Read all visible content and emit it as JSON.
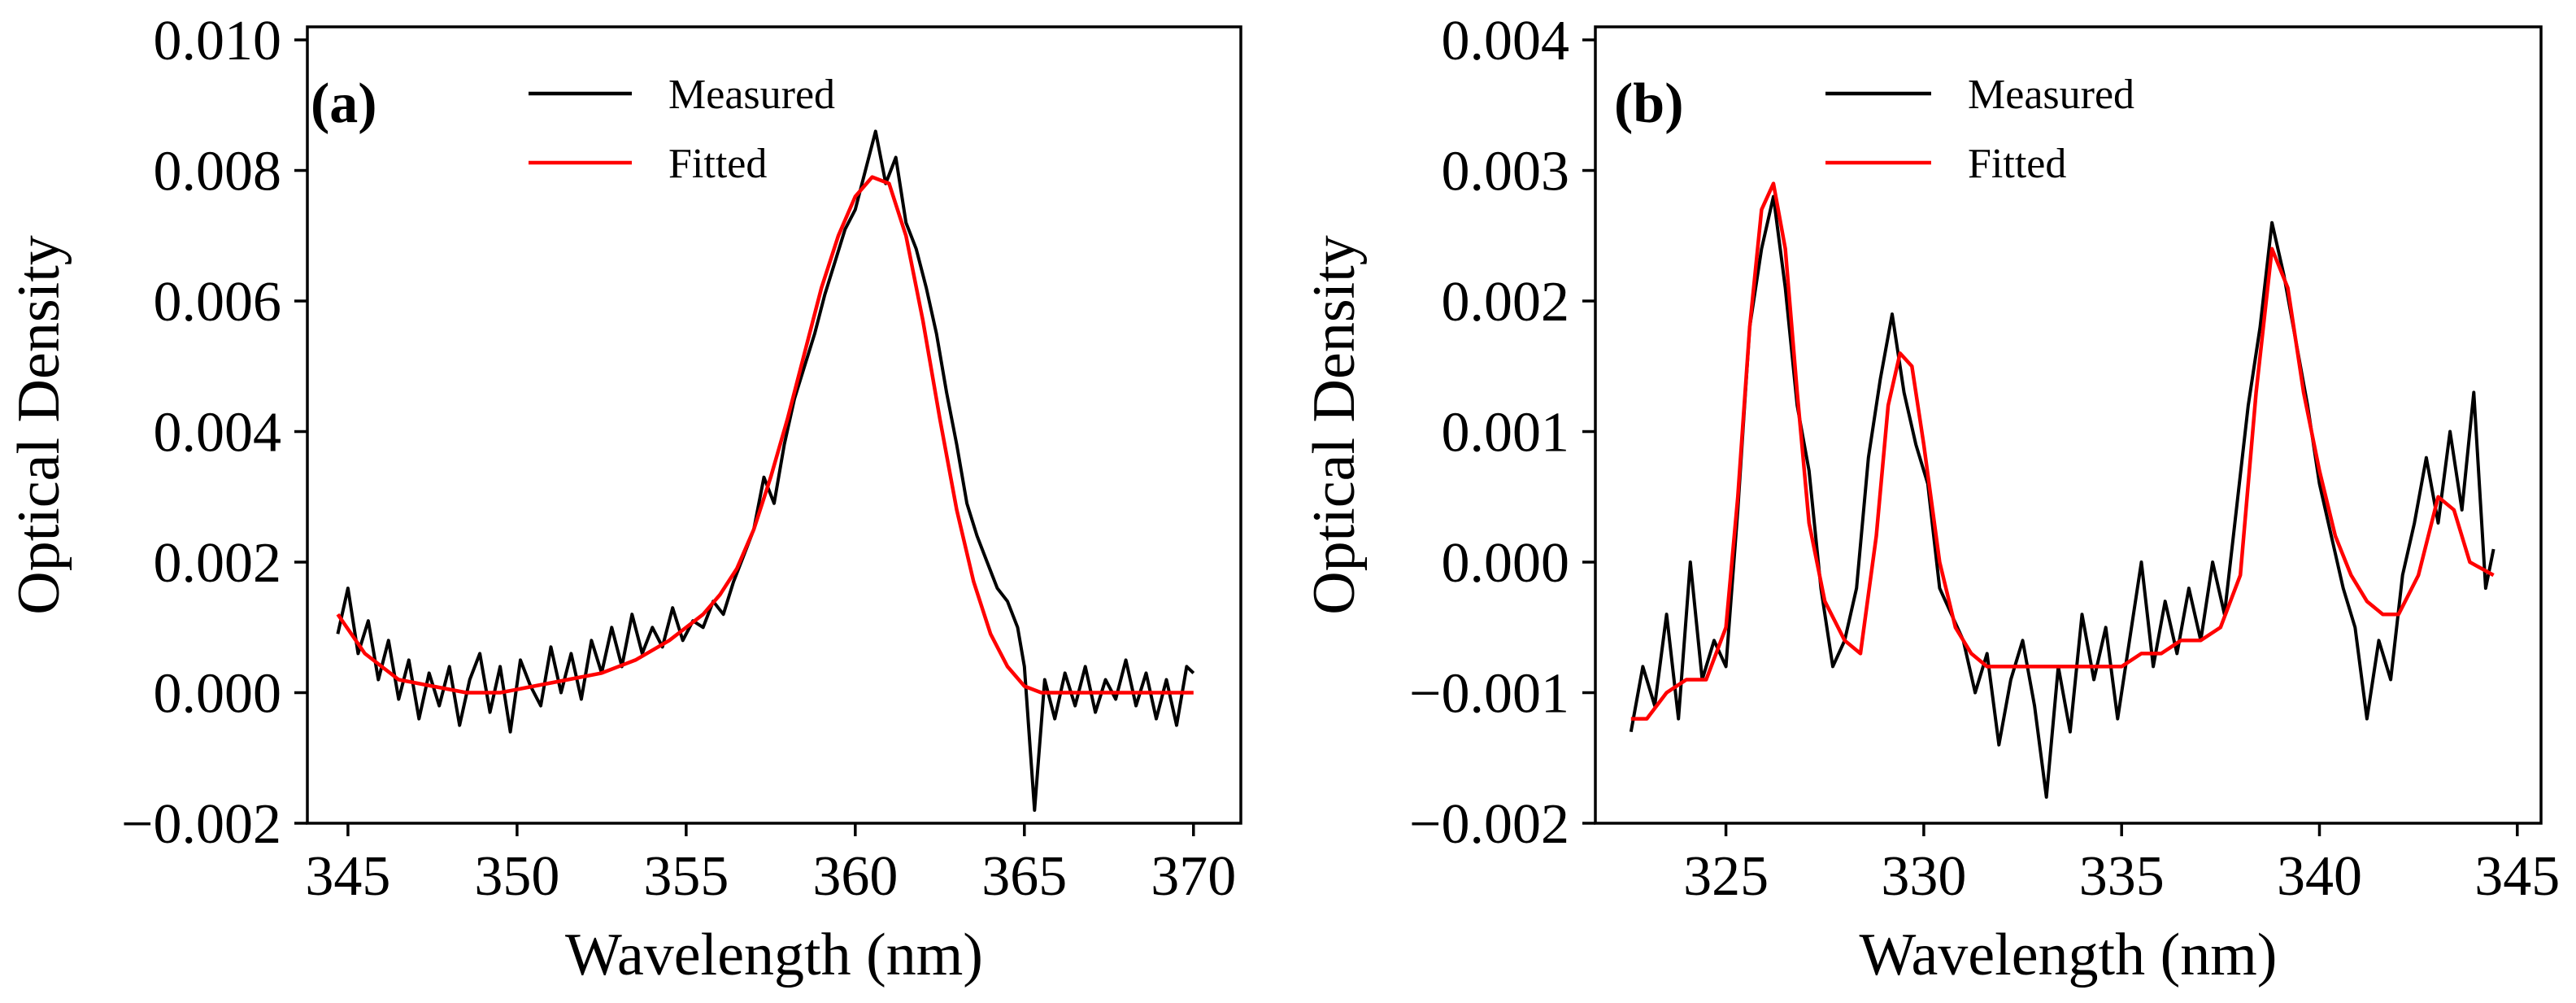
{
  "chart_data": [
    {
      "type": "line",
      "panel_label": "(a)",
      "xlabel": "Wavelength (nm)",
      "ylabel": "Optical Density",
      "xlim": [
        343.8,
        371.4
      ],
      "ylim": [
        -0.002,
        0.0102
      ],
      "xticks": [
        345,
        350,
        355,
        360,
        365,
        370
      ],
      "xtick_labels": [
        "345",
        "350",
        "355",
        "360",
        "365",
        "370"
      ],
      "yticks": [
        -0.002,
        0.0,
        0.002,
        0.004,
        0.006,
        0.008,
        0.01
      ],
      "ytick_labels": [
        "−0.002",
        "0.000",
        "0.002",
        "0.004",
        "0.006",
        "0.008",
        "0.010"
      ],
      "legend": {
        "position": "top-center",
        "entries": [
          "Measured",
          "Fitted"
        ]
      },
      "series": [
        {
          "name": "Measured",
          "color": "#000000",
          "x": [
            344.7,
            345.0,
            345.3,
            345.6,
            345.9,
            346.2,
            346.5,
            346.8,
            347.1,
            347.4,
            347.7,
            348.0,
            348.3,
            348.6,
            348.9,
            349.2,
            349.5,
            349.8,
            350.1,
            350.4,
            350.7,
            351.0,
            351.3,
            351.6,
            351.9,
            352.2,
            352.5,
            352.8,
            353.1,
            353.4,
            353.7,
            354.0,
            354.3,
            354.6,
            354.9,
            355.2,
            355.5,
            355.8,
            356.1,
            356.4,
            356.7,
            357.0,
            357.3,
            357.6,
            357.9,
            358.2,
            358.5,
            358.8,
            359.1,
            359.4,
            359.7,
            360.0,
            360.3,
            360.6,
            360.9,
            361.2,
            361.5,
            361.8,
            362.1,
            362.4,
            362.7,
            363.0,
            363.3,
            363.6,
            363.9,
            364.2,
            364.5,
            364.8,
            365.0,
            365.3,
            365.6,
            365.9,
            366.2,
            366.5,
            366.8,
            367.1,
            367.4,
            367.7,
            368.0,
            368.3,
            368.6,
            368.9,
            369.2,
            369.5,
            369.8,
            370.0
          ],
          "y": [
            0.0009,
            0.0016,
            0.0006,
            0.0011,
            0.0002,
            0.0008,
            -0.0001,
            0.0005,
            -0.0004,
            0.0003,
            -0.0002,
            0.0004,
            -0.0005,
            0.0002,
            0.0006,
            -0.0003,
            0.0004,
            -0.0006,
            0.0005,
            0.0001,
            -0.0002,
            0.0007,
            0.0,
            0.0006,
            -0.0001,
            0.0008,
            0.0003,
            0.001,
            0.0004,
            0.0012,
            0.0006,
            0.001,
            0.0007,
            0.0013,
            0.0008,
            0.0011,
            0.001,
            0.0014,
            0.0012,
            0.0017,
            0.0021,
            0.0025,
            0.0033,
            0.0029,
            0.0038,
            0.0045,
            0.005,
            0.0055,
            0.0061,
            0.0066,
            0.0071,
            0.0074,
            0.008,
            0.0086,
            0.0078,
            0.0082,
            0.0072,
            0.0068,
            0.0062,
            0.0055,
            0.0046,
            0.0038,
            0.0029,
            0.0024,
            0.002,
            0.0016,
            0.0014,
            0.001,
            0.0004,
            -0.0018,
            0.0002,
            -0.0004,
            0.0003,
            -0.0002,
            0.0004,
            -0.0003,
            0.0002,
            -0.0001,
            0.0005,
            -0.0002,
            0.0003,
            -0.0004,
            0.0002,
            -0.0005,
            0.0004,
            0.0003
          ]
        },
        {
          "name": "Fitted",
          "color": "#ff0000",
          "x": [
            344.7,
            345.5,
            346.5,
            347.5,
            348.5,
            349.5,
            350.5,
            351.5,
            352.5,
            353.5,
            354.5,
            355.5,
            356.0,
            356.5,
            357.0,
            357.5,
            358.0,
            358.5,
            359.0,
            359.5,
            360.0,
            360.5,
            361.0,
            361.5,
            362.0,
            362.5,
            363.0,
            363.5,
            364.0,
            364.5,
            365.0,
            365.5,
            366.0,
            367.0,
            368.0,
            369.0,
            370.0
          ],
          "y": [
            0.0012,
            0.0006,
            0.0002,
            0.0001,
            0.0,
            0.0,
            0.0001,
            0.0002,
            0.0003,
            0.0005,
            0.0008,
            0.0012,
            0.0015,
            0.0019,
            0.0025,
            0.0033,
            0.0042,
            0.0052,
            0.0062,
            0.007,
            0.0076,
            0.0079,
            0.0078,
            0.007,
            0.0057,
            0.0042,
            0.0028,
            0.0017,
            0.0009,
            0.0004,
            0.0001,
            0.0,
            0.0,
            0.0,
            0.0,
            0.0,
            0.0
          ]
        }
      ]
    },
    {
      "type": "line",
      "panel_label": "(b)",
      "xlabel": "Wavelength (nm)",
      "ylabel": "Optical Density",
      "xlim": [
        321.7,
        345.6
      ],
      "ylim": [
        -0.002,
        0.0041
      ],
      "xticks": [
        325,
        330,
        335,
        340,
        345
      ],
      "xtick_labels": [
        "325",
        "330",
        "335",
        "340",
        "345"
      ],
      "yticks": [
        -0.002,
        -0.001,
        0.0,
        0.001,
        0.002,
        0.003,
        0.004
      ],
      "ytick_labels": [
        "−0.002",
        "−0.001",
        "0.000",
        "0.001",
        "0.002",
        "0.003",
        "0.004"
      ],
      "legend": {
        "position": "top-center",
        "entries": [
          "Measured",
          "Fitted"
        ]
      },
      "series": [
        {
          "name": "Measured",
          "color": "#000000",
          "x": [
            322.6,
            322.9,
            323.2,
            323.5,
            323.8,
            324.1,
            324.4,
            324.7,
            325.0,
            325.3,
            325.6,
            325.9,
            326.2,
            326.5,
            326.8,
            327.1,
            327.4,
            327.7,
            328.0,
            328.3,
            328.6,
            328.9,
            329.2,
            329.5,
            329.8,
            330.1,
            330.4,
            330.7,
            331.0,
            331.3,
            331.6,
            331.9,
            332.2,
            332.5,
            332.8,
            333.1,
            333.4,
            333.7,
            334.0,
            334.3,
            334.6,
            334.9,
            335.2,
            335.5,
            335.8,
            336.1,
            336.4,
            336.7,
            337.0,
            337.3,
            337.6,
            337.9,
            338.2,
            338.5,
            338.8,
            339.1,
            339.4,
            339.7,
            340.0,
            340.3,
            340.6,
            340.9,
            341.2,
            341.5,
            341.8,
            342.1,
            342.4,
            342.7,
            343.0,
            343.3,
            343.6,
            343.9,
            344.2,
            344.4
          ],
          "y": [
            -0.0013,
            -0.0008,
            -0.0011,
            -0.0004,
            -0.0012,
            0.0,
            -0.0009,
            -0.0006,
            -0.0008,
            0.0004,
            0.0018,
            0.0024,
            0.0028,
            0.0021,
            0.0012,
            0.0007,
            -0.0002,
            -0.0008,
            -0.0006,
            -0.0002,
            0.0008,
            0.0014,
            0.0019,
            0.0013,
            0.0009,
            0.0006,
            -0.0002,
            -0.0004,
            -0.0006,
            -0.001,
            -0.0007,
            -0.0014,
            -0.0009,
            -0.0006,
            -0.0011,
            -0.0018,
            -0.0008,
            -0.0013,
            -0.0004,
            -0.0009,
            -0.0005,
            -0.0012,
            -0.0006,
            0.0,
            -0.0008,
            -0.0003,
            -0.0007,
            -0.0002,
            -0.0006,
            0.0,
            -0.0004,
            0.0004,
            0.0012,
            0.0018,
            0.0026,
            0.0022,
            0.0017,
            0.0012,
            0.0006,
            0.0002,
            -0.0002,
            -0.0005,
            -0.0012,
            -0.0006,
            -0.0009,
            -0.0001,
            0.0003,
            0.0008,
            0.0003,
            0.001,
            0.0004,
            0.0013,
            -0.0002,
            0.0001
          ]
        },
        {
          "name": "Fitted",
          "color": "#ff0000",
          "x": [
            322.6,
            323.0,
            323.5,
            324.0,
            324.5,
            325.0,
            325.3,
            325.6,
            325.9,
            326.2,
            326.5,
            326.8,
            327.1,
            327.5,
            328.0,
            328.4,
            328.8,
            329.1,
            329.4,
            329.7,
            330.0,
            330.4,
            330.8,
            331.2,
            331.6,
            332.0,
            332.5,
            333.0,
            333.5,
            334.0,
            334.5,
            335.0,
            335.5,
            336.0,
            336.5,
            337.0,
            337.5,
            338.0,
            338.4,
            338.8,
            339.2,
            339.6,
            340.0,
            340.4,
            340.8,
            341.2,
            341.6,
            342.0,
            342.5,
            343.0,
            343.4,
            343.8,
            344.4
          ],
          "y": [
            -0.0012,
            -0.0012,
            -0.001,
            -0.0009,
            -0.0009,
            -0.0005,
            0.0005,
            0.0018,
            0.0027,
            0.0029,
            0.0024,
            0.0013,
            0.0003,
            -0.0003,
            -0.0006,
            -0.0007,
            0.0002,
            0.0012,
            0.0016,
            0.0015,
            0.0009,
            0.0,
            -0.0005,
            -0.0007,
            -0.0008,
            -0.0008,
            -0.0008,
            -0.0008,
            -0.0008,
            -0.0008,
            -0.0008,
            -0.0008,
            -0.0007,
            -0.0007,
            -0.0006,
            -0.0006,
            -0.0005,
            -0.0001,
            0.0013,
            0.0024,
            0.0021,
            0.0013,
            0.0007,
            0.0002,
            -0.0001,
            -0.0003,
            -0.0004,
            -0.0004,
            -0.0001,
            0.0005,
            0.0004,
            0.0,
            -0.0001
          ]
        }
      ]
    }
  ]
}
